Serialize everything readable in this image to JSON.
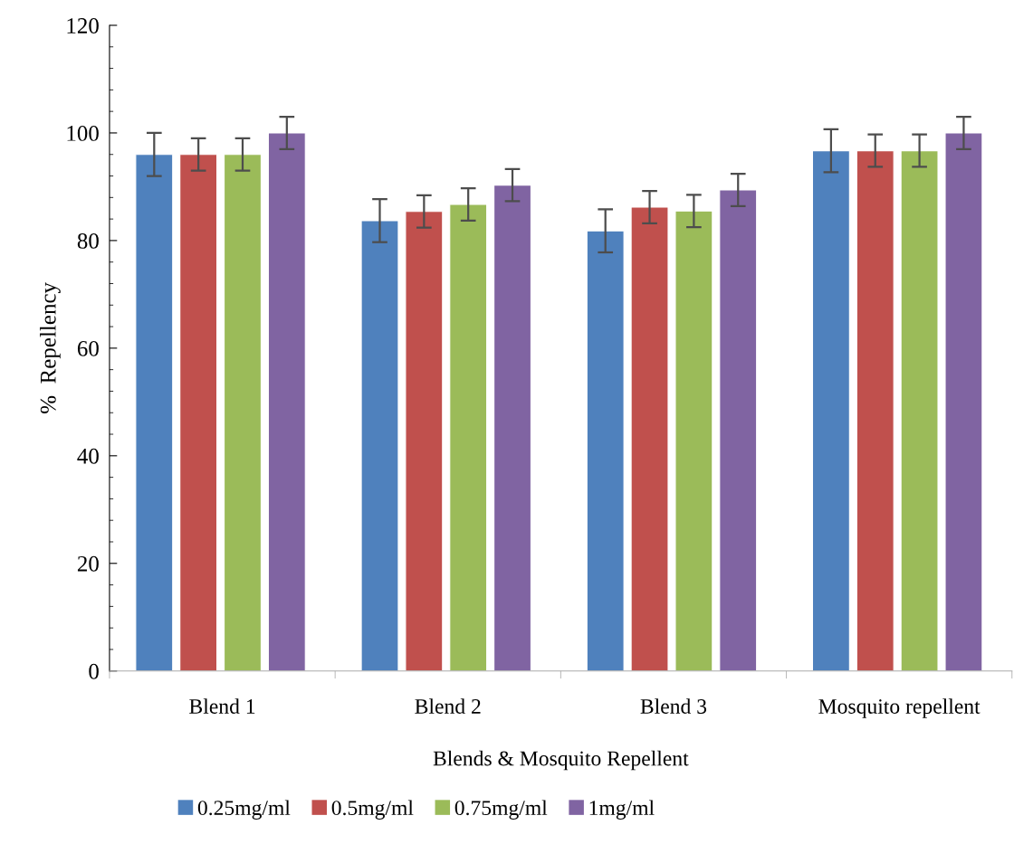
{
  "chart_data": {
    "type": "bar",
    "xlabel": "Blends & Mosquito Repellent",
    "ylabel": "%  Repellency",
    "categories": [
      "Blend 1",
      "Blend 2",
      "Blend 3",
      "Mosquito repellent"
    ],
    "series": [
      {
        "name": "0.25mg/ml",
        "color": "#4f81bd",
        "values": [
          96,
          83.7,
          81.8,
          96.7
        ],
        "errors": [
          4,
          4,
          4,
          4
        ]
      },
      {
        "name": "0.5mg/ml",
        "color": "#c0504d",
        "values": [
          96,
          85.4,
          86.2,
          96.7
        ],
        "errors": [
          3,
          3,
          3,
          3
        ]
      },
      {
        "name": "0.75mg/ml",
        "color": "#9bbb59",
        "values": [
          96,
          86.7,
          85.5,
          96.7
        ],
        "errors": [
          3,
          3,
          3,
          3
        ]
      },
      {
        "name": "1mg/ml",
        "color": "#8064a2",
        "values": [
          100,
          90.3,
          89.4,
          100
        ],
        "errors": [
          3,
          3,
          3,
          3
        ]
      }
    ],
    "ylim": [
      0,
      120
    ],
    "yticks": [
      0,
      20,
      40,
      60,
      80,
      100,
      120
    ],
    "grid": false,
    "legend": "bottom"
  }
}
